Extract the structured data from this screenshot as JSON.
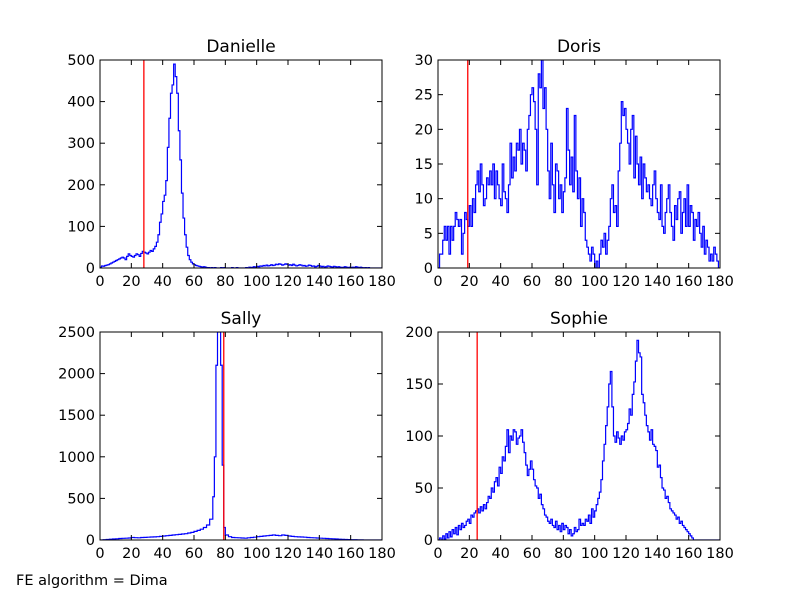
{
  "footer": "FE algorithm = Dima",
  "colors": {
    "hist": "#0000ff",
    "marker": "#ff0000",
    "frame": "#000000",
    "background": "#ffffff"
  },
  "chart_data": [
    {
      "type": "histogram",
      "title": "Danielle",
      "xlim": [
        0,
        180
      ],
      "ylim": [
        0,
        500
      ],
      "xticks": [
        "0",
        "20",
        "40",
        "60",
        "80",
        "100",
        "120",
        "140",
        "160",
        "180"
      ],
      "yticks": [
        "0",
        "100",
        "200",
        "300",
        "400",
        "500"
      ],
      "marker_x": 28,
      "step_x": [
        0,
        1,
        2,
        3,
        4,
        5,
        6,
        7,
        8,
        9,
        10,
        11,
        12,
        13,
        14,
        15,
        16,
        17,
        18,
        19,
        20,
        21,
        22,
        23,
        24,
        25,
        26,
        27,
        28,
        29,
        30,
        31,
        32,
        33,
        34,
        35,
        36,
        37,
        38,
        39,
        40,
        41,
        42,
        43,
        44,
        45,
        46,
        47,
        48,
        49,
        50,
        51,
        52,
        53,
        54,
        55,
        56,
        57,
        58,
        59,
        60,
        61,
        62,
        63,
        64,
        65,
        66,
        67,
        68,
        69,
        70,
        71,
        72,
        73,
        74,
        75,
        76,
        77,
        78,
        79,
        80,
        81,
        82,
        83,
        84,
        85,
        86,
        87,
        88,
        89,
        90,
        91,
        92,
        93,
        94,
        95,
        96,
        97,
        98,
        99,
        100,
        101,
        102,
        103,
        104,
        105,
        106,
        107,
        108,
        109,
        110,
        111,
        112,
        113,
        114,
        115,
        116,
        117,
        118,
        119,
        120,
        121,
        122,
        123,
        124,
        125,
        126,
        127,
        128,
        129,
        130,
        131,
        132,
        133,
        134,
        135,
        136,
        137,
        138,
        139,
        140,
        141,
        142,
        143,
        144,
        145,
        146,
        147,
        148,
        149,
        150,
        151,
        152,
        153,
        154,
        155,
        156,
        157,
        158,
        159,
        160,
        161,
        162,
        163,
        164,
        165,
        166,
        167,
        168,
        169,
        170,
        171,
        172,
        173,
        174,
        175,
        176,
        177,
        178,
        179
      ],
      "step_y": [
        2,
        5,
        4,
        6,
        7,
        8,
        10,
        12,
        14,
        16,
        18,
        20,
        22,
        24,
        26,
        24,
        20,
        28,
        34,
        30,
        28,
        26,
        30,
        34,
        32,
        28,
        35,
        40,
        38,
        36,
        34,
        38,
        42,
        40,
        46,
        52,
        62,
        80,
        110,
        130,
        160,
        175,
        210,
        290,
        360,
        420,
        440,
        490,
        460,
        420,
        330,
        260,
        180,
        120,
        80,
        50,
        30,
        20,
        14,
        10,
        8,
        6,
        5,
        4,
        3,
        2,
        3,
        2,
        1,
        1,
        0,
        1,
        0,
        1,
        0,
        0,
        0,
        1,
        0,
        1,
        0,
        0,
        0,
        0,
        1,
        0,
        0,
        1,
        0,
        0,
        0,
        0,
        0,
        1,
        0,
        2,
        1,
        2,
        3,
        2,
        4,
        3,
        5,
        4,
        6,
        5,
        7,
        5,
        6,
        8,
        6,
        7,
        9,
        8,
        10,
        9,
        7,
        8,
        10,
        9,
        7,
        8,
        6,
        9,
        7,
        5,
        6,
        8,
        7,
        5,
        6,
        4,
        5,
        7,
        6,
        4,
        5,
        3,
        4,
        6,
        5,
        3,
        4,
        2,
        3,
        5,
        4,
        3,
        2,
        4,
        3,
        2,
        3,
        2,
        1,
        2,
        3,
        2,
        1,
        2,
        1,
        2,
        1,
        3,
        2,
        1,
        2,
        1,
        0,
        1,
        0,
        1,
        0,
        0,
        0,
        0,
        0,
        0,
        0,
        0
      ]
    },
    {
      "type": "histogram",
      "title": "Doris",
      "xlim": [
        0,
        180
      ],
      "ylim": [
        0,
        30
      ],
      "xticks": [
        "0",
        "20",
        "40",
        "60",
        "80",
        "100",
        "120",
        "140",
        "160",
        "180"
      ],
      "yticks": [
        "0",
        "5",
        "10",
        "15",
        "20",
        "25",
        "30"
      ],
      "marker_x": 19,
      "step_x": [
        0,
        1,
        2,
        3,
        4,
        5,
        6,
        7,
        8,
        9,
        10,
        11,
        12,
        13,
        14,
        15,
        16,
        17,
        18,
        19,
        20,
        21,
        22,
        23,
        24,
        25,
        26,
        27,
        28,
        29,
        30,
        31,
        32,
        33,
        34,
        35,
        36,
        37,
        38,
        39,
        40,
        41,
        42,
        43,
        44,
        45,
        46,
        47,
        48,
        49,
        50,
        51,
        52,
        53,
        54,
        55,
        56,
        57,
        58,
        59,
        60,
        61,
        62,
        63,
        64,
        65,
        66,
        67,
        68,
        69,
        70,
        71,
        72,
        73,
        74,
        75,
        76,
        77,
        78,
        79,
        80,
        81,
        82,
        83,
        84,
        85,
        86,
        87,
        88,
        89,
        90,
        91,
        92,
        93,
        94,
        95,
        96,
        97,
        98,
        99,
        100,
        101,
        102,
        103,
        104,
        105,
        106,
        107,
        108,
        109,
        110,
        111,
        112,
        113,
        114,
        115,
        116,
        117,
        118,
        119,
        120,
        121,
        122,
        123,
        124,
        125,
        126,
        127,
        128,
        129,
        130,
        131,
        132,
        133,
        134,
        135,
        136,
        137,
        138,
        139,
        140,
        141,
        142,
        143,
        144,
        145,
        146,
        147,
        148,
        149,
        150,
        151,
        152,
        153,
        154,
        155,
        156,
        157,
        158,
        159,
        160,
        161,
        162,
        163,
        164,
        165,
        166,
        167,
        168,
        169,
        170,
        171,
        172,
        173,
        174,
        175,
        176,
        177,
        178,
        179
      ],
      "step_y": [
        0,
        2,
        2,
        4,
        6,
        4,
        6,
        2,
        6,
        4,
        6,
        8,
        7,
        6,
        7,
        2,
        5,
        8,
        7,
        6,
        9,
        6,
        10,
        8,
        12,
        14,
        11,
        15,
        12,
        9,
        10,
        13,
        12,
        14,
        12,
        15,
        10,
        14,
        12,
        10,
        9,
        15,
        11,
        10,
        8,
        12,
        18,
        13,
        16,
        14,
        18,
        17,
        20,
        15,
        18,
        17,
        14,
        20,
        22,
        25,
        26,
        24,
        20,
        12,
        28,
        26,
        30,
        23,
        26,
        20,
        14,
        10,
        18,
        12,
        8,
        15,
        14,
        10,
        12,
        8,
        11,
        13,
        23,
        17,
        12,
        16,
        11,
        22,
        14,
        10,
        13,
        6,
        10,
        8,
        4,
        3,
        2,
        1,
        3,
        2,
        0,
        1,
        0,
        2,
        4,
        3,
        5,
        2,
        4,
        6,
        10,
        12,
        8,
        9,
        6,
        14,
        18,
        24,
        22,
        23,
        20,
        18,
        15,
        20,
        22,
        13,
        19,
        15,
        12,
        16,
        10,
        15,
        13,
        11,
        12,
        10,
        9,
        12,
        14,
        10,
        8,
        7,
        12,
        6,
        5,
        8,
        10,
        12,
        8,
        6,
        4,
        9,
        7,
        10,
        11,
        5,
        8,
        10,
        6,
        12,
        6,
        9,
        8,
        4,
        7,
        6,
        8,
        5,
        3,
        6,
        2,
        4,
        3,
        1,
        2,
        1,
        3,
        2,
        1,
        0
      ],
      "step_y_note": ""
    },
    {
      "type": "histogram",
      "title": "Sally",
      "xlim": [
        0,
        180
      ],
      "ylim": [
        0,
        2500
      ],
      "xticks": [
        "0",
        "20",
        "40",
        "60",
        "80",
        "100",
        "120",
        "140",
        "160",
        "180"
      ],
      "yticks": [
        "0",
        "500",
        "1000",
        "1500",
        "2000",
        "2500"
      ],
      "marker_x": 79,
      "step_x": [
        0,
        2,
        4,
        6,
        8,
        10,
        12,
        14,
        16,
        18,
        20,
        22,
        24,
        26,
        28,
        30,
        32,
        34,
        36,
        38,
        40,
        42,
        44,
        46,
        48,
        50,
        52,
        54,
        56,
        58,
        60,
        62,
        64,
        66,
        68,
        70,
        72,
        73,
        74,
        75,
        76,
        77,
        78,
        79,
        80,
        82,
        84,
        86,
        88,
        90,
        92,
        94,
        96,
        98,
        100,
        102,
        104,
        106,
        108,
        110,
        112,
        114,
        116,
        118,
        120,
        122,
        124,
        126,
        128,
        130,
        132,
        134,
        136,
        138,
        140,
        142,
        144,
        146,
        148,
        150,
        152,
        154,
        156,
        158,
        160,
        162,
        164,
        166,
        168,
        170,
        172,
        174,
        176,
        178
      ],
      "step_y": [
        0,
        4,
        6,
        10,
        12,
        14,
        18,
        20,
        22,
        24,
        30,
        28,
        26,
        30,
        32,
        34,
        36,
        38,
        40,
        44,
        48,
        52,
        56,
        60,
        64,
        68,
        72,
        76,
        84,
        92,
        104,
        116,
        130,
        150,
        180,
        250,
        520,
        1000,
        2100,
        2500,
        2500,
        2100,
        900,
        150,
        60,
        40,
        30,
        28,
        26,
        24,
        22,
        26,
        30,
        34,
        40,
        44,
        48,
        52,
        56,
        60,
        56,
        52,
        60,
        56,
        48,
        44,
        40,
        38,
        36,
        34,
        30,
        28,
        26,
        24,
        22,
        20,
        18,
        16,
        14,
        12,
        10,
        8,
        6,
        5,
        4,
        3,
        2,
        2,
        1,
        0,
        0,
        0,
        0,
        0
      ]
    },
    {
      "type": "histogram",
      "title": "Sophie",
      "xlim": [
        0,
        180
      ],
      "ylim": [
        0,
        200
      ],
      "xticks": [
        "0",
        "20",
        "40",
        "60",
        "80",
        "100",
        "120",
        "140",
        "160",
        "180"
      ],
      "yticks": [
        "0",
        "50",
        "100",
        "150",
        "200"
      ],
      "marker_x": 25,
      "step_x": [
        0,
        1,
        2,
        3,
        4,
        5,
        6,
        7,
        8,
        9,
        10,
        11,
        12,
        13,
        14,
        15,
        16,
        17,
        18,
        19,
        20,
        21,
        22,
        23,
        24,
        25,
        26,
        27,
        28,
        29,
        30,
        31,
        32,
        33,
        34,
        35,
        36,
        37,
        38,
        39,
        40,
        41,
        42,
        43,
        44,
        45,
        46,
        47,
        48,
        49,
        50,
        51,
        52,
        53,
        54,
        55,
        56,
        57,
        58,
        59,
        60,
        61,
        62,
        63,
        64,
        65,
        66,
        67,
        68,
        69,
        70,
        71,
        72,
        73,
        74,
        75,
        76,
        77,
        78,
        79,
        80,
        81,
        82,
        83,
        84,
        85,
        86,
        87,
        88,
        89,
        90,
        91,
        92,
        93,
        94,
        95,
        96,
        97,
        98,
        99,
        100,
        101,
        102,
        103,
        104,
        105,
        106,
        107,
        108,
        109,
        110,
        111,
        112,
        113,
        114,
        115,
        116,
        117,
        118,
        119,
        120,
        121,
        122,
        123,
        124,
        125,
        126,
        127,
        128,
        129,
        130,
        131,
        132,
        133,
        134,
        135,
        136,
        137,
        138,
        139,
        140,
        141,
        142,
        143,
        144,
        145,
        146,
        147,
        148,
        149,
        150,
        151,
        152,
        153,
        154,
        155,
        156,
        157,
        158,
        159,
        160,
        161,
        162,
        163,
        164,
        165,
        166,
        167,
        168,
        169,
        170,
        171,
        172,
        173,
        174,
        175,
        176,
        177,
        178,
        179
      ],
      "step_y": [
        0,
        2,
        0,
        4,
        1,
        6,
        2,
        8,
        3,
        10,
        6,
        12,
        5,
        14,
        10,
        16,
        12,
        14,
        18,
        20,
        16,
        24,
        22,
        26,
        28,
        30,
        26,
        32,
        28,
        34,
        30,
        36,
        42,
        40,
        50,
        46,
        56,
        60,
        52,
        70,
        64,
        80,
        76,
        90,
        106,
        84,
        100,
        96,
        106,
        104,
        92,
        98,
        100,
        106,
        94,
        84,
        72,
        62,
        68,
        76,
        68,
        58,
        52,
        50,
        40,
        44,
        34,
        30,
        24,
        22,
        18,
        16,
        20,
        14,
        12,
        18,
        10,
        14,
        8,
        16,
        10,
        14,
        12,
        6,
        10,
        4,
        6,
        12,
        8,
        10,
        20,
        14,
        16,
        14,
        20,
        18,
        24,
        16,
        30,
        22,
        28,
        34,
        40,
        46,
        58,
        76,
        92,
        110,
        128,
        150,
        162,
        128,
        100,
        94,
        104,
        98,
        92,
        100,
        96,
        104,
        106,
        112,
        126,
        120,
        140,
        152,
        172,
        192,
        180,
        176,
        140,
        132,
        120,
        110,
        104,
        96,
        106,
        92,
        90,
        86,
        70,
        72,
        60,
        50,
        48,
        40,
        42,
        36,
        30,
        28,
        26,
        24,
        20,
        22,
        16,
        18,
        14,
        12,
        10,
        8,
        6,
        4,
        2,
        0,
        0,
        0,
        0,
        0,
        0,
        0,
        0,
        0,
        0,
        0,
        0,
        0,
        0,
        0,
        0,
        0
      ]
    }
  ]
}
